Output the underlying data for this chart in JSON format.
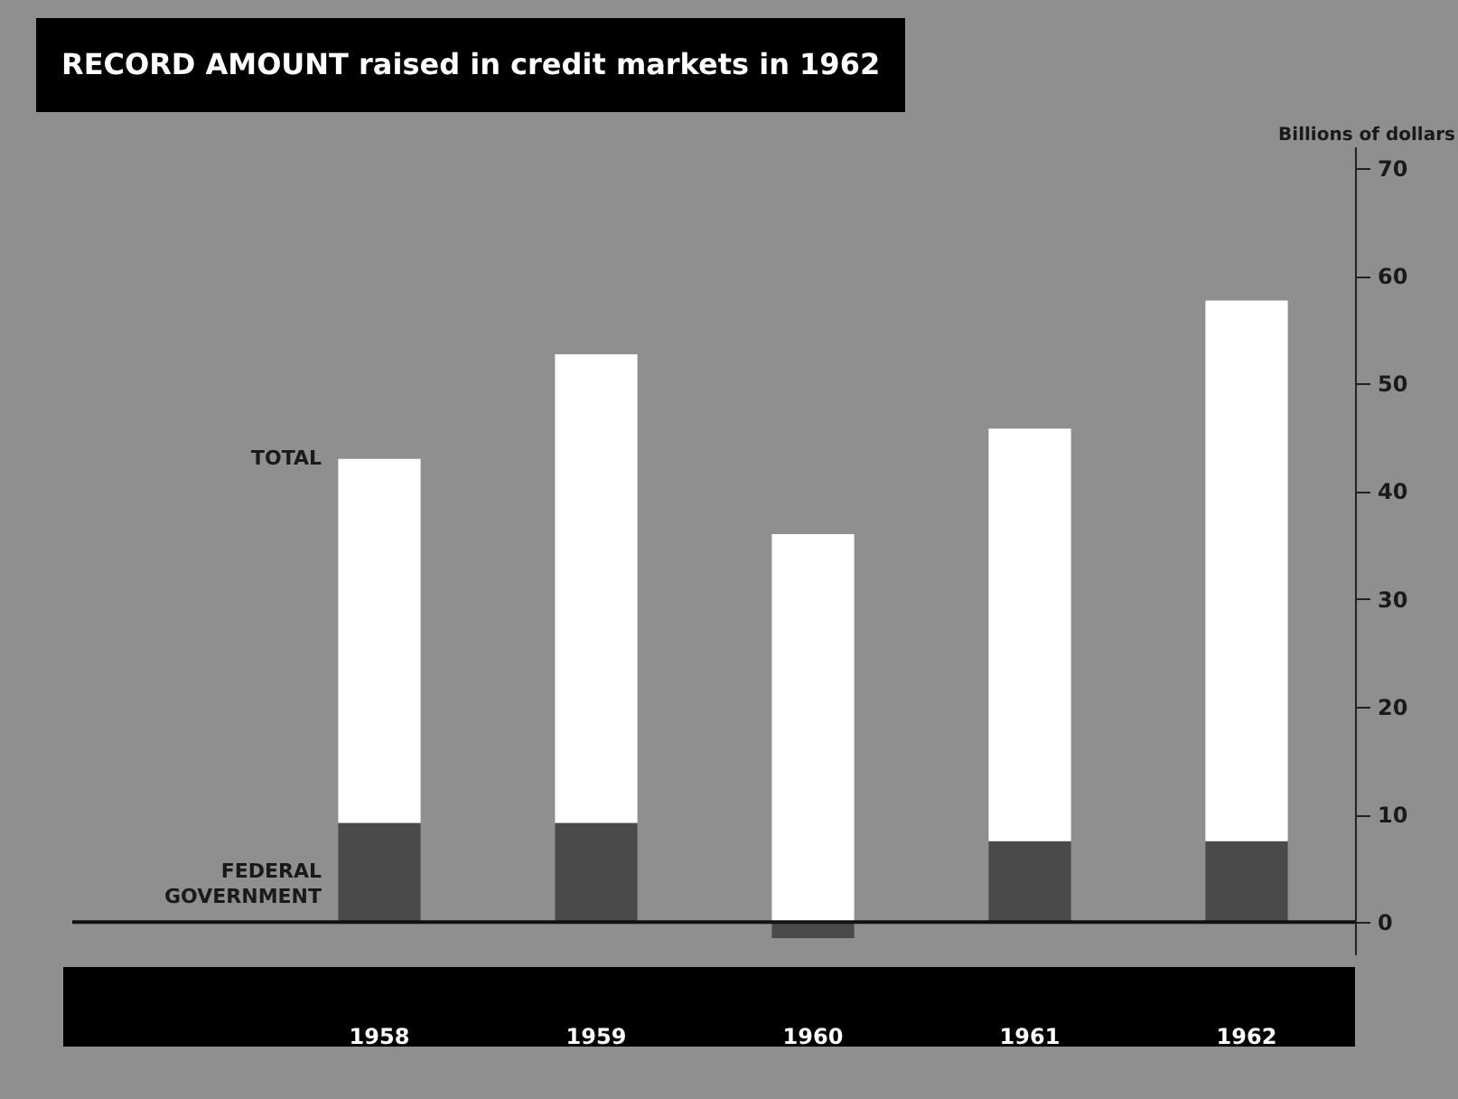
{
  "chart_data": {
    "type": "bar",
    "title": "RECORD AMOUNT raised in credit markets in 1962",
    "ylabel": "Billions of dollars",
    "categories": [
      "1958",
      "1959",
      "1960",
      "1961",
      "1962"
    ],
    "stacked": true,
    "series": [
      {
        "name": "FEDERAL GOVERNMENT",
        "color": "#4a4a4a",
        "values": [
          9.2,
          9.2,
          -1.5,
          7.5,
          7.5
        ]
      },
      {
        "name": "TOTAL",
        "color": "#ffffff",
        "values": [
          33.8,
          43.5,
          36,
          38.3,
          50.2
        ]
      }
    ],
    "ylim": [
      -3,
      72
    ],
    "yticks": [
      0,
      10,
      20,
      30,
      40,
      50,
      60,
      70
    ]
  }
}
